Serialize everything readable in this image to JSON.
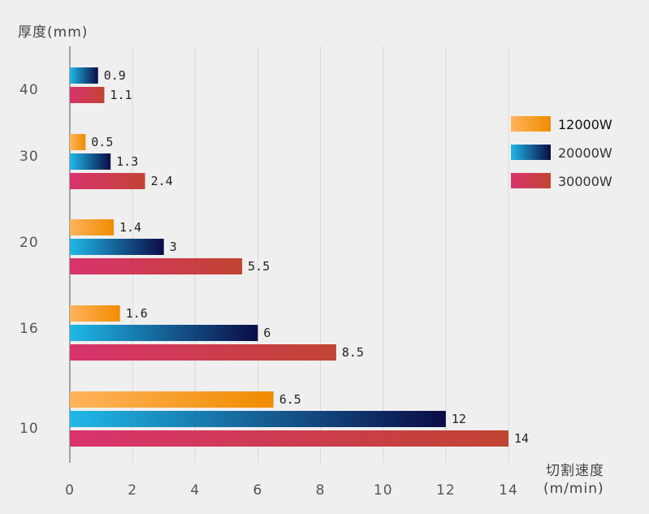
{
  "chart_data": {
    "type": "bar",
    "orientation": "horizontal",
    "ylabel": "厚度(mm)",
    "xlabel_line1": "切割速度",
    "xlabel_line2": "(m/min)",
    "categories": [
      "10",
      "16",
      "20",
      "30",
      "40"
    ],
    "xlim": [
      0,
      14
    ],
    "xticks": [
      0,
      2,
      4,
      6,
      8,
      10,
      12,
      14
    ],
    "grid": true,
    "legend_position": "right",
    "series": [
      {
        "name": "12000W",
        "values": [
          6.5,
          1.6,
          1.4,
          0.5,
          null
        ],
        "labels": [
          "6.5",
          "1.6",
          "1.4",
          "0.5",
          ""
        ],
        "color_start": "#ffb35c",
        "color_end": "#f08c00"
      },
      {
        "name": "20000W",
        "values": [
          12,
          6,
          3,
          1.3,
          0.9
        ],
        "labels": [
          "12",
          "6",
          "3",
          "1.3",
          "0.9"
        ],
        "color_start": "#1fb8e8",
        "color_end": "#0b0b45"
      },
      {
        "name": "30000W",
        "values": [
          14,
          8.5,
          5.5,
          2.4,
          1.1
        ],
        "labels": [
          "14",
          "8.5",
          "5.5",
          "2.4",
          "1.1"
        ],
        "color_start": "#d8336d",
        "color_end": "#c24433"
      }
    ]
  }
}
